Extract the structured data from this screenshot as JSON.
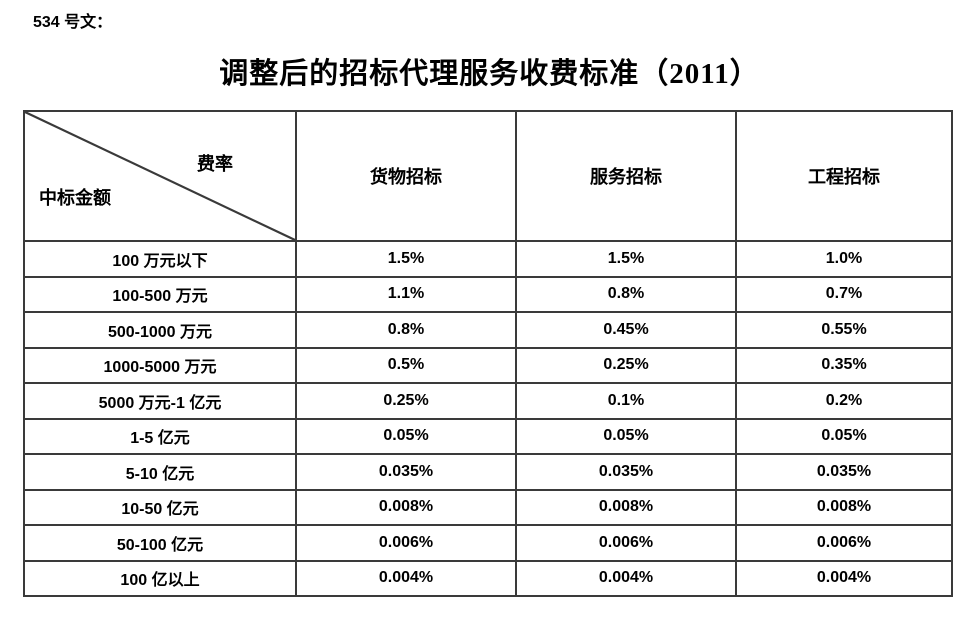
{
  "doc_label": "534 号文：",
  "title": "调整后的招标代理服务收费标准（2011）",
  "table": {
    "corner": {
      "top_right": "费率",
      "bottom_left": "中标金额"
    },
    "columns": [
      "货物招标",
      "服务招标",
      "工程招标"
    ],
    "rows": [
      {
        "label": "100 万元以下",
        "values": [
          "1.5%",
          "1.5%",
          "1.0%"
        ]
      },
      {
        "label": "100-500 万元",
        "values": [
          "1.1%",
          "0.8%",
          "0.7%"
        ]
      },
      {
        "label": "500-1000 万元",
        "values": [
          "0.8%",
          "0.45%",
          "0.55%"
        ]
      },
      {
        "label": "1000-5000 万元",
        "values": [
          "0.5%",
          "0.25%",
          "0.35%"
        ]
      },
      {
        "label": "5000 万元-1 亿元",
        "values": [
          "0.25%",
          "0.1%",
          "0.2%"
        ]
      },
      {
        "label": "1-5 亿元",
        "values": [
          "0.05%",
          "0.05%",
          "0.05%"
        ]
      },
      {
        "label": "5-10 亿元",
        "values": [
          "0.035%",
          "0.035%",
          "0.035%"
        ]
      },
      {
        "label": "10-50 亿元",
        "values": [
          "0.008%",
          "0.008%",
          "0.008%"
        ]
      },
      {
        "label": "50-100 亿元",
        "values": [
          "0.006%",
          "0.006%",
          "0.006%"
        ]
      },
      {
        "label": "100 亿以上",
        "values": [
          "0.004%",
          "0.004%",
          "0.004%"
        ]
      }
    ]
  },
  "colors": {
    "border": "#3a3a3a",
    "text": "#000000",
    "background": "#ffffff"
  }
}
